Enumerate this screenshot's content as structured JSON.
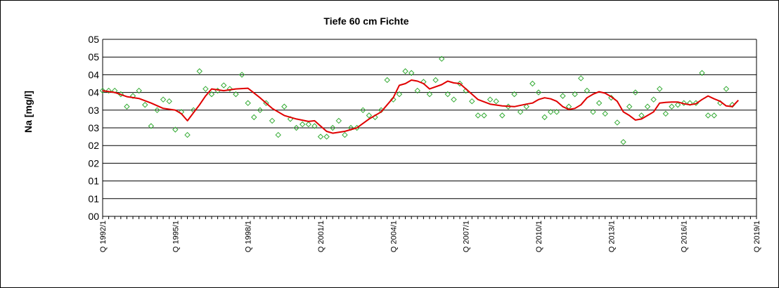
{
  "chart_data": {
    "type": "line",
    "title": "Tiefe  60 cm     Fichte",
    "ylabel": "Na [mg/l]",
    "xlabel": "",
    "y_tick_labels": [
      "00",
      "01",
      "01",
      "02",
      "02",
      "03",
      "03",
      "04",
      "04",
      "05",
      "05"
    ],
    "y_tick_values": [
      0,
      0.5,
      1,
      1.5,
      2,
      2.5,
      3,
      3.5,
      4,
      4.5,
      5
    ],
    "ylim": [
      0,
      5
    ],
    "grid": true,
    "legend": "none",
    "x_tick_labels": [
      "Q 1992/1",
      "Q 1995/1",
      "Q 1998/1",
      "Q 2001/1",
      "Q 2004/1",
      "Q 2007/1",
      "Q 2010/1",
      "Q 2013/1",
      "Q 2016/1",
      "Q 2019/1"
    ],
    "x_tick_index": [
      0,
      12,
      24,
      36,
      48,
      60,
      72,
      84,
      96,
      108
    ],
    "n_quarters": 109,
    "series": [
      {
        "kind": "scatter",
        "color": "#33AA33",
        "marker": "diamond",
        "points": [
          [
            0,
            3.55
          ],
          [
            1,
            3.55
          ],
          [
            2,
            3.55
          ],
          [
            3,
            3.45
          ],
          [
            4,
            3.1
          ],
          [
            5,
            3.4
          ],
          [
            6,
            3.55
          ],
          [
            7,
            3.15
          ],
          [
            8,
            2.55
          ],
          [
            9,
            3.0
          ],
          [
            10,
            3.3
          ],
          [
            11,
            3.25
          ],
          [
            12,
            2.45
          ],
          [
            13,
            2.95
          ],
          [
            14,
            2.3
          ],
          [
            15,
            3.0
          ],
          [
            16,
            4.1
          ],
          [
            17,
            3.6
          ],
          [
            18,
            3.45
          ],
          [
            19,
            3.55
          ],
          [
            20,
            3.7
          ],
          [
            21,
            3.6
          ],
          [
            22,
            3.45
          ],
          [
            23,
            4.0
          ],
          [
            24,
            3.2
          ],
          [
            25,
            2.8
          ],
          [
            26,
            3.0
          ],
          [
            27,
            3.2
          ],
          [
            28,
            2.7
          ],
          [
            29,
            2.3
          ],
          [
            30,
            3.1
          ],
          [
            31,
            2.75
          ],
          [
            32,
            2.5
          ],
          [
            33,
            2.6
          ],
          [
            34,
            2.6
          ],
          [
            35,
            2.55
          ],
          [
            36,
            2.25
          ],
          [
            37,
            2.25
          ],
          [
            38,
            2.5
          ],
          [
            39,
            2.7
          ],
          [
            40,
            2.3
          ],
          [
            41,
            2.5
          ],
          [
            42,
            2.5
          ],
          [
            43,
            3.0
          ],
          [
            44,
            2.85
          ],
          [
            45,
            2.8
          ],
          [
            46,
            3.0
          ],
          [
            47,
            3.85
          ],
          [
            48,
            3.3
          ],
          [
            49,
            3.45
          ],
          [
            50,
            4.1
          ],
          [
            51,
            4.05
          ],
          [
            52,
            3.55
          ],
          [
            53,
            3.8
          ],
          [
            54,
            3.45
          ],
          [
            55,
            3.85
          ],
          [
            56,
            4.45
          ],
          [
            57,
            3.45
          ],
          [
            58,
            3.3
          ],
          [
            59,
            3.75
          ],
          [
            60,
            3.55
          ],
          [
            61,
            3.25
          ],
          [
            62,
            2.85
          ],
          [
            63,
            2.85
          ],
          [
            64,
            3.3
          ],
          [
            65,
            3.25
          ],
          [
            66,
            2.85
          ],
          [
            67,
            3.1
          ],
          [
            68,
            3.45
          ],
          [
            69,
            2.95
          ],
          [
            70,
            3.1
          ],
          [
            71,
            3.75
          ],
          [
            72,
            3.5
          ],
          [
            73,
            2.8
          ],
          [
            74,
            2.95
          ],
          [
            75,
            2.95
          ],
          [
            76,
            3.4
          ],
          [
            77,
            3.1
          ],
          [
            78,
            3.45
          ],
          [
            79,
            3.9
          ],
          [
            80,
            3.55
          ],
          [
            81,
            2.95
          ],
          [
            82,
            3.2
          ],
          [
            83,
            2.9
          ],
          [
            84,
            3.35
          ],
          [
            85,
            2.65
          ],
          [
            86,
            2.1
          ],
          [
            87,
            3.1
          ],
          [
            88,
            3.5
          ],
          [
            89,
            2.85
          ],
          [
            90,
            3.1
          ],
          [
            91,
            3.3
          ],
          [
            92,
            3.6
          ],
          [
            93,
            2.9
          ],
          [
            94,
            3.1
          ],
          [
            95,
            3.15
          ],
          [
            96,
            3.2
          ],
          [
            97,
            3.2
          ],
          [
            98,
            3.2
          ],
          [
            99,
            4.05
          ],
          [
            100,
            2.85
          ],
          [
            101,
            2.85
          ],
          [
            102,
            3.2
          ],
          [
            103,
            3.6
          ],
          [
            104,
            3.15
          ]
        ]
      },
      {
        "kind": "line",
        "color": "#E00000",
        "points": [
          [
            0,
            3.55
          ],
          [
            2,
            3.5
          ],
          [
            4,
            3.38
          ],
          [
            6,
            3.33
          ],
          [
            8,
            3.2
          ],
          [
            10,
            3.05
          ],
          [
            12,
            3.0
          ],
          [
            13,
            2.9
          ],
          [
            14,
            2.7
          ],
          [
            16,
            3.15
          ],
          [
            17,
            3.4
          ],
          [
            18,
            3.6
          ],
          [
            20,
            3.55
          ],
          [
            22,
            3.6
          ],
          [
            24,
            3.62
          ],
          [
            26,
            3.35
          ],
          [
            28,
            3.05
          ],
          [
            30,
            2.85
          ],
          [
            32,
            2.75
          ],
          [
            34,
            2.68
          ],
          [
            35,
            2.7
          ],
          [
            36,
            2.55
          ],
          [
            37,
            2.4
          ],
          [
            38,
            2.35
          ],
          [
            40,
            2.4
          ],
          [
            42,
            2.5
          ],
          [
            44,
            2.75
          ],
          [
            46,
            2.95
          ],
          [
            47,
            3.15
          ],
          [
            48,
            3.35
          ],
          [
            49,
            3.7
          ],
          [
            50,
            3.75
          ],
          [
            51,
            3.85
          ],
          [
            52,
            3.82
          ],
          [
            53,
            3.75
          ],
          [
            54,
            3.6
          ],
          [
            56,
            3.72
          ],
          [
            57,
            3.82
          ],
          [
            58,
            3.77
          ],
          [
            59,
            3.75
          ],
          [
            60,
            3.6
          ],
          [
            61,
            3.45
          ],
          [
            62,
            3.3
          ],
          [
            64,
            3.17
          ],
          [
            66,
            3.12
          ],
          [
            68,
            3.1
          ],
          [
            70,
            3.17
          ],
          [
            71,
            3.2
          ],
          [
            72,
            3.3
          ],
          [
            73,
            3.35
          ],
          [
            74,
            3.32
          ],
          [
            75,
            3.25
          ],
          [
            76,
            3.1
          ],
          [
            77,
            3.02
          ],
          [
            78,
            3.05
          ],
          [
            79,
            3.15
          ],
          [
            80,
            3.35
          ],
          [
            81,
            3.45
          ],
          [
            82,
            3.52
          ],
          [
            83,
            3.48
          ],
          [
            84,
            3.38
          ],
          [
            85,
            3.25
          ],
          [
            86,
            2.95
          ],
          [
            87,
            2.85
          ],
          [
            88,
            2.72
          ],
          [
            89,
            2.75
          ],
          [
            90,
            2.85
          ],
          [
            91,
            2.95
          ],
          [
            92,
            3.2
          ],
          [
            93,
            3.22
          ],
          [
            94,
            3.23
          ],
          [
            95,
            3.23
          ],
          [
            96,
            3.18
          ],
          [
            97,
            3.15
          ],
          [
            98,
            3.18
          ],
          [
            99,
            3.3
          ],
          [
            100,
            3.4
          ],
          [
            101,
            3.32
          ],
          [
            102,
            3.25
          ],
          [
            103,
            3.12
          ],
          [
            104,
            3.1
          ],
          [
            105,
            3.28
          ]
        ]
      }
    ]
  }
}
